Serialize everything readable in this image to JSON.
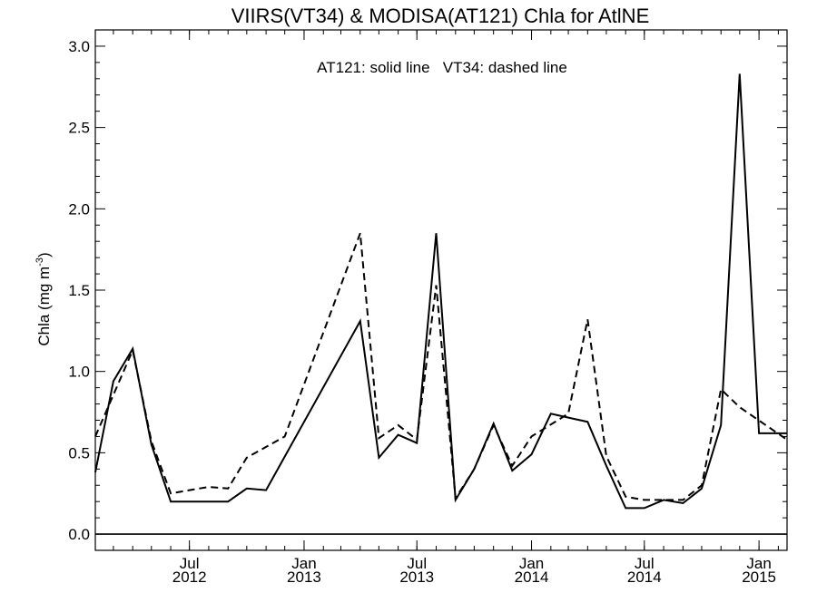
{
  "chart_data": {
    "type": "line",
    "title": "VIIRS(VT34) & MODISA(AT121)  Chla for AtlNE",
    "annotation": "AT121: solid line   VT34: dashed line",
    "ylabel_main": "Chla (mg m",
    "ylabel_sup": "-3",
    "ylabel_close": ")",
    "xlabel": "",
    "ylim": [
      -0.1,
      3.1
    ],
    "xlim": [
      "2012-02-01",
      "2015-02-15"
    ],
    "y_ticks": [
      0.0,
      0.5,
      1.0,
      1.5,
      2.0,
      2.5,
      3.0
    ],
    "y_tick_labels": [
      "0.0",
      "0.5",
      "1.0",
      "1.5",
      "2.0",
      "2.5",
      "3.0"
    ],
    "x_ticks": [
      {
        "date": "2012-07-01",
        "month": "Jul",
        "year": "2012"
      },
      {
        "date": "2013-01-01",
        "month": "Jan",
        "year": "2013"
      },
      {
        "date": "2013-07-01",
        "month": "Jul",
        "year": "2013"
      },
      {
        "date": "2014-01-01",
        "month": "Jan",
        "year": "2014"
      },
      {
        "date": "2014-07-01",
        "month": "Jul",
        "year": "2014"
      },
      {
        "date": "2015-01-01",
        "month": "Jan",
        "year": "2015"
      }
    ],
    "zero_line": 0.0,
    "grid": false,
    "series": [
      {
        "name": "AT121",
        "style": "solid",
        "color": "#000000",
        "x": [
          "2012-02-01",
          "2012-03-01",
          "2012-04-01",
          "2012-05-01",
          "2012-06-01",
          "2012-07-01",
          "2012-09-01",
          "2012-10-01",
          "2012-11-01",
          "2013-04-01",
          "2013-05-01",
          "2013-06-01",
          "2013-07-01",
          "2013-08-01",
          "2013-09-01",
          "2013-10-01",
          "2013-11-01",
          "2013-12-01",
          "2014-01-01",
          "2014-02-01",
          "2014-04-01",
          "2014-05-01",
          "2014-06-01",
          "2014-07-01",
          "2014-08-01",
          "2014-09-01",
          "2014-10-01",
          "2014-11-01",
          "2014-12-01",
          "2015-01-01",
          "2015-02-15"
        ],
        "y": [
          0.38,
          0.94,
          1.14,
          0.55,
          0.2,
          0.2,
          0.2,
          0.28,
          0.27,
          1.31,
          0.47,
          0.61,
          0.56,
          1.85,
          0.21,
          0.4,
          0.68,
          0.39,
          0.49,
          0.74,
          0.69,
          0.42,
          0.16,
          0.16,
          0.21,
          0.19,
          0.28,
          0.67,
          2.83,
          0.62,
          0.62
        ]
      },
      {
        "name": "VT34",
        "style": "dashed",
        "color": "#000000",
        "x": [
          "2012-02-01",
          "2012-04-01",
          "2012-05-01",
          "2012-06-01",
          "2012-08-01",
          "2012-09-01",
          "2012-10-01",
          "2012-12-01",
          "2013-04-01",
          "2013-05-01",
          "2013-06-01",
          "2013-07-01",
          "2013-08-01",
          "2013-09-01",
          "2013-10-01",
          "2013-11-01",
          "2013-12-01",
          "2014-01-01",
          "2014-03-01",
          "2014-04-01",
          "2014-05-01",
          "2014-06-01",
          "2014-07-01",
          "2014-09-01",
          "2014-10-01",
          "2014-11-01",
          "2014-12-01",
          "2015-02-15"
        ],
        "y": [
          0.6,
          1.13,
          0.57,
          0.25,
          0.29,
          0.28,
          0.47,
          0.6,
          1.85,
          0.59,
          0.67,
          0.58,
          1.53,
          0.22,
          0.4,
          0.67,
          0.42,
          0.6,
          0.74,
          1.32,
          0.48,
          0.23,
          0.21,
          0.21,
          0.3,
          0.89,
          0.78,
          0.58
        ]
      }
    ]
  }
}
